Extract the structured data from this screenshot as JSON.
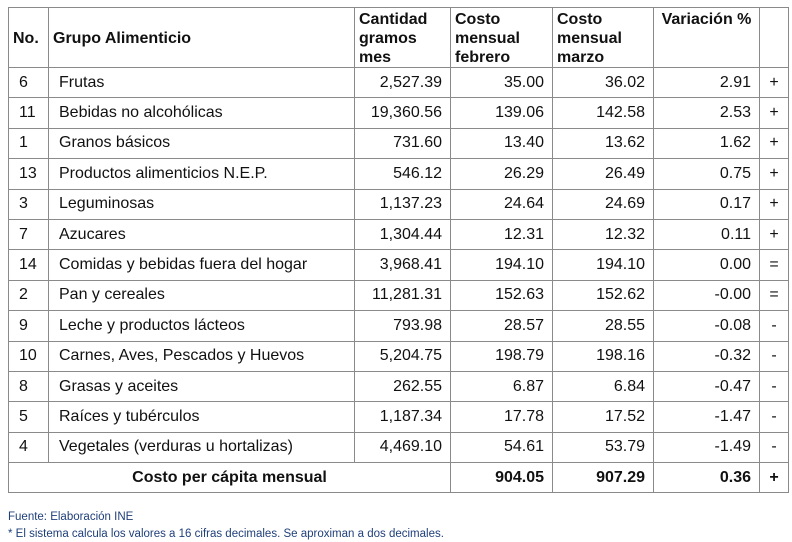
{
  "headers": {
    "no": "No.",
    "grupo": "Grupo Alimenticio",
    "cantidad": "Cantidad gramos mes",
    "febrero": "Costo mensual febrero",
    "marzo": "Costo mensual marzo",
    "variacion": "Variación %"
  },
  "rows": [
    {
      "no": "6",
      "grupo": "Frutas",
      "cantidad": "2,527.39",
      "febrero": "35.00",
      "marzo": "36.02",
      "variacion": "2.91",
      "sign": "+"
    },
    {
      "no": "11",
      "grupo": "Bebidas no alcohólicas",
      "cantidad": "19,360.56",
      "febrero": "139.06",
      "marzo": "142.58",
      "variacion": "2.53",
      "sign": "+"
    },
    {
      "no": "1",
      "grupo": "Granos básicos",
      "cantidad": "731.60",
      "febrero": "13.40",
      "marzo": "13.62",
      "variacion": "1.62",
      "sign": "+"
    },
    {
      "no": "13",
      "grupo": "Productos alimenticios N.E.P.",
      "cantidad": "546.12",
      "febrero": "26.29",
      "marzo": "26.49",
      "variacion": "0.75",
      "sign": "+"
    },
    {
      "no": "3",
      "grupo": "Leguminosas",
      "cantidad": "1,137.23",
      "febrero": "24.64",
      "marzo": "24.69",
      "variacion": "0.17",
      "sign": "+"
    },
    {
      "no": "7",
      "grupo": "Azucares",
      "cantidad": "1,304.44",
      "febrero": "12.31",
      "marzo": "12.32",
      "variacion": "0.11",
      "sign": "+"
    },
    {
      "no": "14",
      "grupo": "Comidas y bebidas fuera del hogar",
      "cantidad": "3,968.41",
      "febrero": "194.10",
      "marzo": "194.10",
      "variacion": "0.00",
      "sign": "="
    },
    {
      "no": "2",
      "grupo": "Pan y cereales",
      "cantidad": "11,281.31",
      "febrero": "152.63",
      "marzo": "152.62",
      "variacion": "-0.00",
      "sign": "="
    },
    {
      "no": "9",
      "grupo": "Leche y productos lácteos",
      "cantidad": "793.98",
      "febrero": "28.57",
      "marzo": "28.55",
      "variacion": "-0.08",
      "sign": "-"
    },
    {
      "no": "10",
      "grupo": "Carnes, Aves, Pescados y Huevos",
      "cantidad": "5,204.75",
      "febrero": "198.79",
      "marzo": "198.16",
      "variacion": "-0.32",
      "sign": "-"
    },
    {
      "no": "8",
      "grupo": "Grasas y aceites",
      "cantidad": "262.55",
      "febrero": "6.87",
      "marzo": "6.84",
      "variacion": "-0.47",
      "sign": "-"
    },
    {
      "no": "5",
      "grupo": "Raíces y tubérculos",
      "cantidad": "1,187.34",
      "febrero": "17.78",
      "marzo": "17.52",
      "variacion": "-1.47",
      "sign": "-"
    },
    {
      "no": "4",
      "grupo": "Vegetales (verduras u hortalizas)",
      "cantidad": "4,469.10",
      "febrero": "54.61",
      "marzo": "53.79",
      "variacion": "-1.49",
      "sign": "-"
    }
  ],
  "total": {
    "label": "Costo per cápita mensual",
    "febrero": "904.05",
    "marzo": "907.29",
    "variacion": "0.36",
    "sign": "+"
  },
  "footnotes": {
    "source": "Fuente: Elaboración INE",
    "note": "* El sistema calcula los valores a 16 cifras decimales. Se aproximan a dos decimales."
  }
}
